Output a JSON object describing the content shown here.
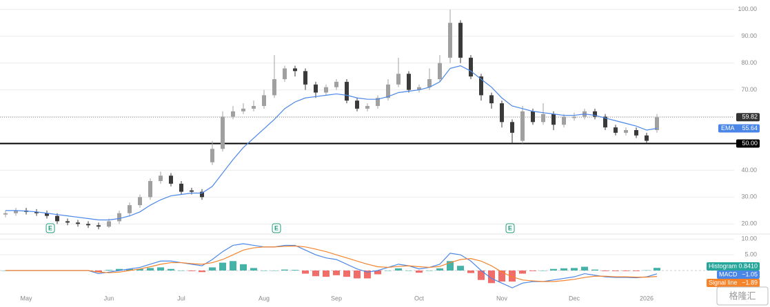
{
  "chart_data": {
    "type": "candlestick",
    "categories": [
      null,
      null,
      "May",
      null,
      null,
      null,
      null,
      null,
      null,
      null,
      "Jun",
      null,
      null,
      null,
      null,
      null,
      null,
      "Jul",
      null,
      null,
      null,
      null,
      null,
      null,
      null,
      "Aug",
      null,
      null,
      null,
      null,
      null,
      null,
      "Sep",
      null,
      null,
      null,
      null,
      null,
      null,
      null,
      "Oct",
      null,
      null,
      null,
      null,
      null,
      null,
      null,
      "Nov",
      null,
      null,
      null,
      null,
      null,
      null,
      "Dec",
      null,
      null,
      null,
      null,
      null,
      null,
      "2026",
      null
    ],
    "open": [
      23.5,
      24,
      25,
      24.5,
      24,
      23,
      21,
      20.5,
      20,
      19.5,
      19,
      21,
      24,
      27,
      30,
      36,
      38,
      35,
      32.5,
      32,
      43,
      48,
      60,
      62,
      63,
      64,
      68,
      74,
      78,
      77,
      72,
      69,
      71,
      73,
      66,
      63,
      64,
      67,
      72,
      76,
      70,
      71,
      74,
      82,
      95,
      82,
      75,
      68,
      65,
      58,
      51,
      62,
      58,
      61,
      57,
      59.5,
      60,
      62,
      60,
      56,
      54,
      55,
      53,
      55
    ],
    "high": [
      25,
      26,
      26,
      25.5,
      25,
      24,
      22,
      21.5,
      21,
      20.5,
      22,
      25,
      28,
      31,
      37,
      39.5,
      39,
      36,
      33.5,
      33,
      51,
      62,
      64,
      65,
      66,
      70,
      83,
      79,
      79,
      78,
      73,
      72,
      74,
      74,
      67,
      65,
      68,
      74,
      82,
      77,
      72,
      78,
      83,
      100,
      96,
      83,
      76,
      69,
      66,
      59,
      64,
      63,
      65,
      62,
      61,
      61.5,
      63,
      63,
      61,
      57,
      56,
      56,
      54,
      61
    ],
    "low": [
      22.5,
      23,
      23.5,
      23,
      22,
      20,
      19.5,
      19,
      18.5,
      18,
      18.5,
      20,
      23,
      26,
      29,
      35,
      34,
      31,
      31,
      29,
      42,
      47,
      59,
      61,
      62,
      63,
      67,
      73,
      75,
      70,
      67,
      68,
      70,
      65,
      62,
      62,
      63,
      66,
      71,
      69,
      69,
      70,
      73,
      80,
      80,
      74,
      66,
      63,
      56,
      50,
      50,
      57,
      57,
      55,
      56,
      58.5,
      59,
      59,
      55,
      53,
      53,
      52,
      50,
      54
    ],
    "close": [
      24,
      25,
      24.5,
      24,
      23,
      21,
      20.5,
      20,
      19.5,
      19,
      21,
      24,
      27,
      30,
      36,
      38,
      35,
      32,
      32,
      30,
      48,
      60,
      62,
      63,
      64,
      68,
      74,
      78,
      77,
      72,
      69,
      71,
      73,
      66,
      63,
      64,
      67,
      72,
      76,
      70,
      71,
      74,
      80,
      95,
      82,
      75,
      68,
      65,
      58,
      54,
      62,
      58,
      61,
      57,
      60,
      60,
      62,
      60,
      56,
      54,
      55,
      53,
      51,
      59.82
    ],
    "up_color": "#a0a0a0",
    "down_color": "#3a3a3a",
    "ema": {
      "name": "EMA",
      "color": "#4a86e8",
      "last_label": "55.64",
      "values": [
        25,
        25,
        24.8,
        24.5,
        24,
        23.5,
        23,
        22.5,
        22,
        21.5,
        21.5,
        22,
        23,
        24.5,
        27,
        29,
        30.5,
        31,
        31.5,
        31.5,
        34,
        39,
        44,
        48.5,
        52,
        55.5,
        59,
        63,
        65.5,
        67,
        67.5,
        68,
        68.5,
        68,
        67,
        66.5,
        66.5,
        67.5,
        69,
        69.5,
        70,
        71,
        73,
        78,
        79,
        77,
        74,
        71,
        67,
        64,
        63,
        62,
        61.5,
        61,
        60.5,
        60.5,
        61,
        60.5,
        59.5,
        58.5,
        57.5,
        56.5,
        55,
        55.64
      ]
    },
    "last_price": {
      "value": 59.82,
      "label": "59.82"
    },
    "hline": {
      "value": 50,
      "label": "50.00"
    },
    "ylim": [
      17,
      102.5
    ],
    "yticks": [
      {
        "value": 20,
        "label": "20.00"
      },
      {
        "value": 30,
        "label": "30.00"
      },
      {
        "value": 40,
        "label": "40.00"
      },
      {
        "value": 50,
        "label": "50.00"
      },
      {
        "value": 60,
        "label": "60.00"
      },
      {
        "value": 70,
        "label": "70.00"
      },
      {
        "value": 80,
        "label": "80.00"
      },
      {
        "value": 90,
        "label": "90.00"
      },
      {
        "value": 100,
        "label": "100.00"
      }
    ],
    "grid": true,
    "earnings_markers": [
      "E",
      "E",
      "E"
    ],
    "macd_panel": {
      "ylim": [
        -7,
        10.5
      ],
      "yticks": [
        {
          "value": 5,
          "label": "5.00"
        },
        {
          "value": 10,
          "label": "10.00"
        }
      ],
      "histogram": {
        "name": "Histogram",
        "pos_color": "#26a69a",
        "neg_color": "#ef5350",
        "last_label": "0.8410",
        "values": [
          0,
          0,
          0,
          0,
          0,
          0,
          0,
          0,
          0,
          -0.5,
          0.2,
          0.5,
          0.5,
          0.5,
          0.8,
          1,
          0.5,
          0,
          -0.2,
          -0.5,
          1,
          2.5,
          3,
          2,
          0.8,
          0,
          0,
          0.3,
          0.2,
          -1,
          -1.8,
          -2,
          -1.5,
          -2,
          -2.5,
          -2.5,
          -1.2,
          0,
          0.7,
          0,
          -0.7,
          0,
          0.7,
          3,
          1.5,
          -0.8,
          -3,
          -4,
          -3.5,
          -3.5,
          -1,
          -0.2,
          0,
          0.5,
          0.7,
          0.8,
          1.2,
          0.3,
          -0.2,
          -0.2,
          -0.2,
          -0.2,
          0.1,
          0.841
        ]
      },
      "macd": {
        "name": "MACD",
        "color": "#4a86e8",
        "last_label": "−1.05",
        "values": [
          0,
          0,
          0,
          0,
          0,
          0,
          0,
          0,
          0,
          -1,
          -0.5,
          0,
          0.5,
          1,
          2,
          3,
          3,
          2.5,
          2,
          1.5,
          3.5,
          6,
          8,
          8.5,
          8,
          7.5,
          7.5,
          8,
          8,
          6.5,
          5,
          4,
          3.5,
          2,
          0.5,
          -0.5,
          0,
          1,
          2,
          1.5,
          0.5,
          1,
          2,
          5.5,
          5,
          3,
          0,
          -2.5,
          -4,
          -5.5,
          -4,
          -3.5,
          -3.5,
          -3,
          -2.5,
          -2,
          -1,
          -1.5,
          -2,
          -2.2,
          -2.2,
          -2.3,
          -2,
          -1.05
        ]
      },
      "signal": {
        "name": "Signal line",
        "color": "#f5832a",
        "last_label": "−1.89",
        "values": [
          0,
          0,
          0,
          0,
          0,
          0,
          0,
          0,
          0,
          -0.5,
          -0.7,
          -0.5,
          0,
          0.5,
          1.2,
          2,
          2.5,
          2.5,
          2.2,
          2,
          2.5,
          3.5,
          5,
          6.5,
          7.2,
          7.5,
          7.5,
          7.7,
          7.8,
          7.5,
          6.8,
          6,
          5,
          4,
          3,
          2,
          1.2,
          1,
          1.3,
          1.5,
          1.2,
          1,
          1.3,
          2.5,
          3.5,
          3.8,
          3,
          1.5,
          -0.5,
          -2,
          -3,
          -3.3,
          -3.5,
          -3.5,
          -3.2,
          -2.8,
          -2.2,
          -1.8,
          -1.8,
          -2,
          -2,
          -2.1,
          -2.1,
          -1.89
        ]
      }
    },
    "watermark": "格隆汇"
  }
}
